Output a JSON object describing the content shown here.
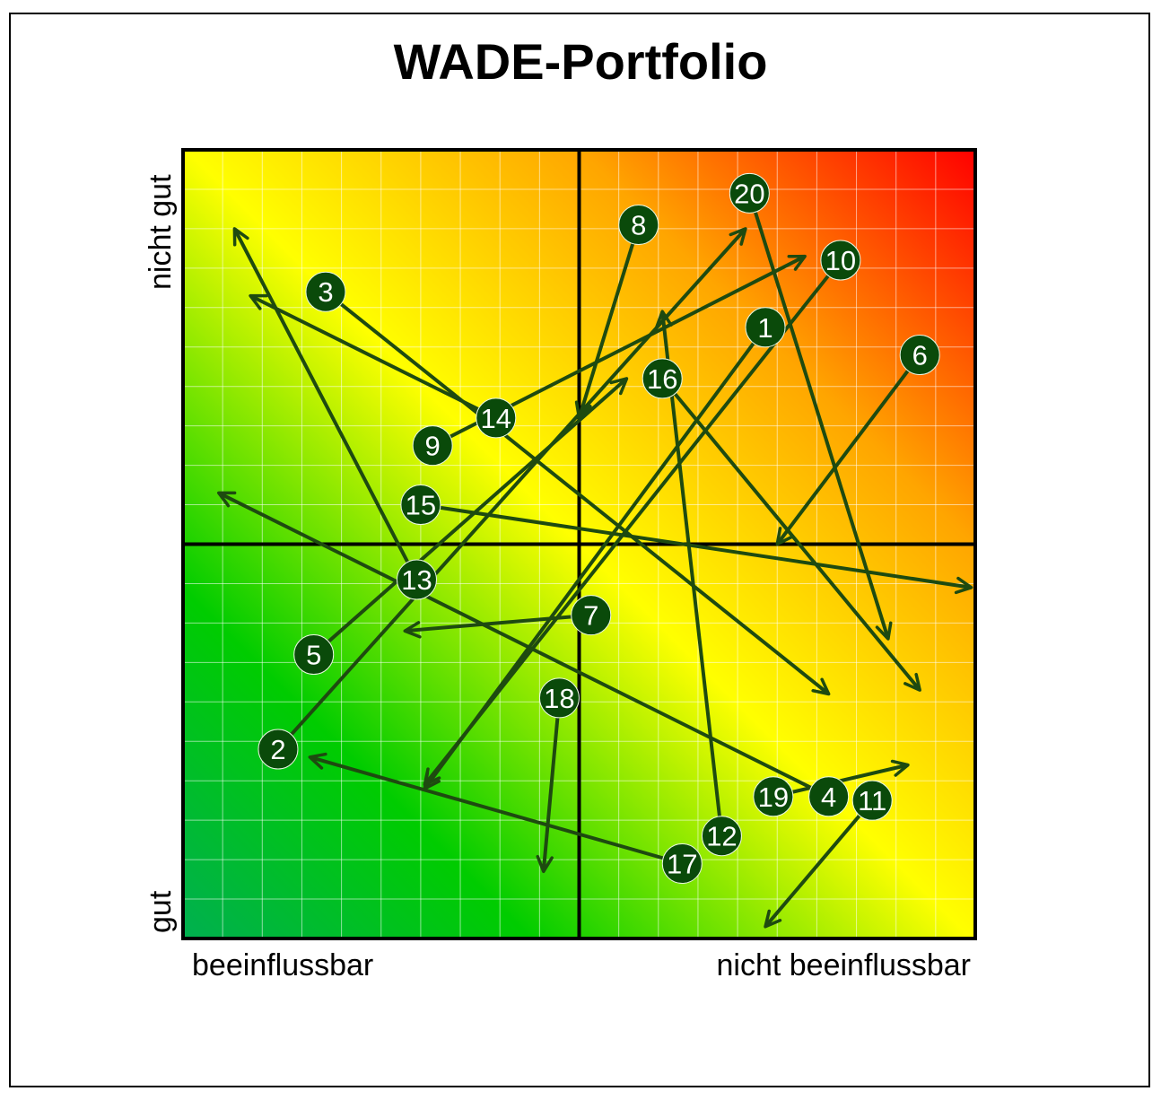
{
  "chart_data": {
    "type": "scatter",
    "title": "WADE-Portfolio",
    "xlabel_left": "beeinflussbar",
    "xlabel_right": "nicht beeinflussbar",
    "ylabel_top": "nicht gut",
    "ylabel_bottom": "gut",
    "xlim": [
      0,
      20
    ],
    "ylim": [
      0,
      20
    ],
    "grid": true,
    "quadrant_divider": [
      10,
      10
    ],
    "point_color": "#0a4a0a",
    "arrow_color": "#1e4a10",
    "gradient_colors": [
      "#00b050",
      "#00cc00",
      "#ffff00",
      "#ffa500",
      "#ff0000"
    ],
    "points": [
      {
        "label": "1",
        "x": 14.7,
        "y": 15.5,
        "arrow_to": [
          6.1,
          3.8
        ]
      },
      {
        "label": "2",
        "x": 2.4,
        "y": 4.8,
        "arrow_to": [
          14.2,
          18.0
        ]
      },
      {
        "label": "3",
        "x": 3.6,
        "y": 16.4,
        "arrow_to": [
          16.3,
          6.2
        ]
      },
      {
        "label": "4",
        "x": 16.3,
        "y": 3.6,
        "arrow_to": [
          0.9,
          11.3
        ]
      },
      {
        "label": "5",
        "x": 3.3,
        "y": 7.2,
        "arrow_to": [
          11.2,
          14.2
        ]
      },
      {
        "label": "6",
        "x": 18.6,
        "y": 14.8,
        "arrow_to": [
          15.0,
          10.0
        ]
      },
      {
        "label": "7",
        "x": 10.3,
        "y": 8.2,
        "arrow_to": [
          5.6,
          7.8
        ]
      },
      {
        "label": "8",
        "x": 11.5,
        "y": 18.1,
        "arrow_to": [
          10.0,
          13.2
        ]
      },
      {
        "label": "9",
        "x": 6.3,
        "y": 12.5,
        "arrow_to": [
          15.7,
          17.3
        ]
      },
      {
        "label": "10",
        "x": 16.6,
        "y": 17.2,
        "arrow_to": [
          6.1,
          3.9
        ]
      },
      {
        "label": "11",
        "x": 17.4,
        "y": 3.5,
        "arrow_to": [
          14.7,
          0.3
        ]
      },
      {
        "label": "12",
        "x": 13.6,
        "y": 2.6,
        "arrow_to": [
          12.1,
          15.9
        ]
      },
      {
        "label": "13",
        "x": 5.9,
        "y": 9.1,
        "arrow_to": [
          1.3,
          18.0
        ]
      },
      {
        "label": "14",
        "x": 7.9,
        "y": 13.2,
        "arrow_to": [
          1.7,
          16.3
        ]
      },
      {
        "label": "15",
        "x": 6.0,
        "y": 11.0,
        "arrow_to": [
          19.9,
          8.9
        ]
      },
      {
        "label": "16",
        "x": 12.1,
        "y": 14.2,
        "arrow_to": [
          18.6,
          6.3
        ]
      },
      {
        "label": "17",
        "x": 12.6,
        "y": 1.9,
        "arrow_to": [
          3.2,
          4.6
        ]
      },
      {
        "label": "18",
        "x": 9.5,
        "y": 6.1,
        "arrow_to": [
          9.1,
          1.7
        ]
      },
      {
        "label": "19",
        "x": 14.9,
        "y": 3.6,
        "arrow_to": [
          18.3,
          4.4
        ]
      },
      {
        "label": "20",
        "x": 14.3,
        "y": 18.9,
        "arrow_to": [
          17.8,
          7.6
        ]
      }
    ]
  }
}
